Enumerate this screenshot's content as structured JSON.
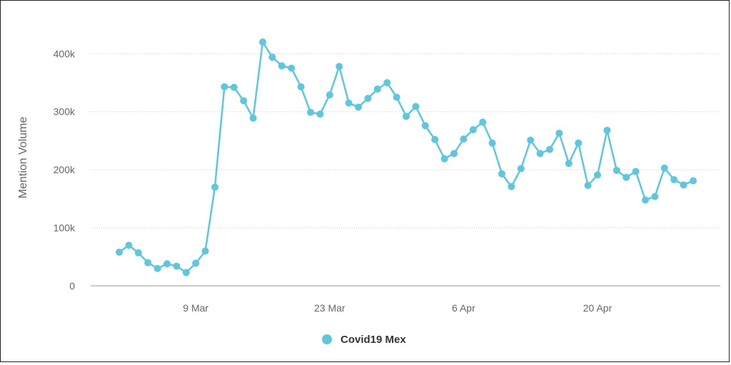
{
  "chart_data": {
    "type": "line",
    "ylabel": "Mention Volume",
    "ylim": [
      0,
      420000
    ],
    "y_ticks": [
      {
        "value": 0,
        "label": "0"
      },
      {
        "value": 100000,
        "label": "100k"
      },
      {
        "value": 200000,
        "label": "200k"
      },
      {
        "value": 300000,
        "label": "300k"
      },
      {
        "value": 400000,
        "label": "400k"
      }
    ],
    "x_ticks": [
      {
        "index": 8,
        "label": "9 Mar"
      },
      {
        "index": 22,
        "label": "23 Mar"
      },
      {
        "index": 36,
        "label": "6 Apr"
      },
      {
        "index": 50,
        "label": "20 Apr"
      }
    ],
    "x_range": [
      -3,
      61
    ],
    "grid": true,
    "legend": "bottom-center",
    "series": [
      {
        "name": "Covid19 Mex",
        "color": "#5bc8df",
        "values": [
          58000,
          70000,
          57000,
          40000,
          30000,
          38000,
          34000,
          23000,
          39000,
          60000,
          170000,
          343000,
          342000,
          319000,
          289000,
          420000,
          394000,
          379000,
          375000,
          343000,
          299000,
          296000,
          329000,
          378000,
          315000,
          308000,
          323000,
          339000,
          350000,
          325000,
          292000,
          309000,
          276000,
          252000,
          219000,
          228000,
          253000,
          269000,
          282000,
          246000,
          193000,
          171000,
          202000,
          251000,
          228000,
          235000,
          263000,
          211000,
          246000,
          173000,
          191000,
          268000,
          199000,
          187000,
          197000,
          148000,
          154000,
          203000,
          183000,
          174000,
          181000
        ]
      }
    ]
  }
}
